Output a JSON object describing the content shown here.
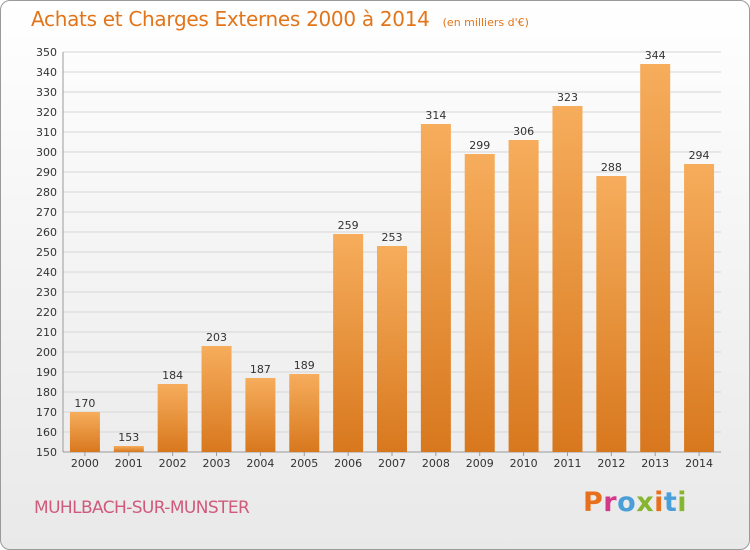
{
  "header": {
    "title": "Achats et Charges Externes 2000 à 2014",
    "subtitle": "(en milliers d'€)"
  },
  "footer": {
    "commune": "MUHLBACH-SUR-MUNSTER",
    "brand": "Proxiti",
    "brand_colors": [
      "#e8701c",
      "#d4388a",
      "#4a9fd8",
      "#86b52f",
      "#e8701c",
      "#4a9fd8",
      "#86b52f"
    ]
  },
  "colors": {
    "bar_light": "#f6ad5c",
    "bar_dark": "#d8781e",
    "grid": "#d6d6d6",
    "title": "#e2751a",
    "commune": "#cf5a7b"
  },
  "chart_data": {
    "type": "bar",
    "title": "Achats et Charges Externes 2000 à 2014",
    "subtitle": "(en milliers d'€)",
    "xlabel": "",
    "ylabel": "",
    "categories": [
      "2000",
      "2001",
      "2002",
      "2003",
      "2004",
      "2005",
      "2006",
      "2007",
      "2008",
      "2009",
      "2010",
      "2011",
      "2012",
      "2013",
      "2014"
    ],
    "values": [
      170,
      153,
      184,
      203,
      187,
      189,
      259,
      253,
      314,
      299,
      306,
      323,
      288,
      344,
      294
    ],
    "ylim": [
      150,
      350
    ],
    "yticks": [
      150,
      160,
      170,
      180,
      190,
      200,
      210,
      220,
      230,
      240,
      250,
      260,
      270,
      280,
      290,
      300,
      310,
      320,
      330,
      340,
      350
    ],
    "grid": true,
    "legend": "none"
  }
}
